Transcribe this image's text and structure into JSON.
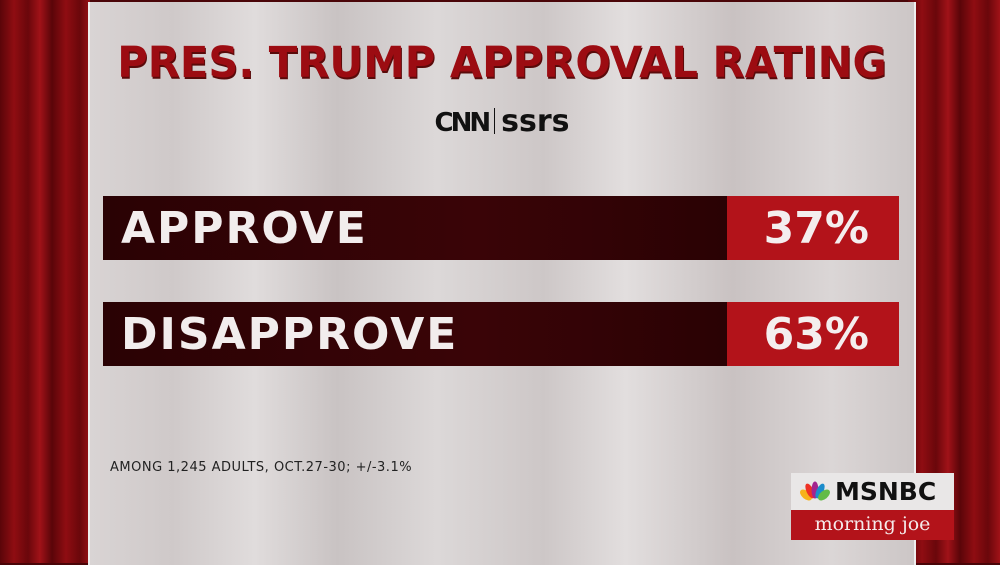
{
  "chart_data": {
    "type": "table",
    "title": "PRES. TRUMP APPROVAL RATING",
    "source": "CNN | SSRS",
    "categories": [
      "APPROVE",
      "DISAPPROVE"
    ],
    "values": [
      37,
      63
    ],
    "value_labels": [
      "37%",
      "63%"
    ],
    "footnote": "AMONG 1,245 ADULTS, OCT.27-30; +/-3.1%"
  },
  "logo": {
    "cnn": "CNN",
    "ssrs": "ssrs"
  },
  "network_bug": {
    "network": "MSNBC",
    "show": "morning joe"
  },
  "colors": {
    "accent": "#9c0c12",
    "bar_dark": "#3a0407",
    "bar_red": "#b3131a"
  }
}
